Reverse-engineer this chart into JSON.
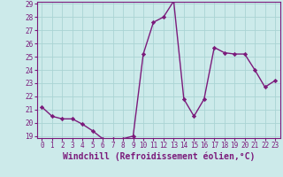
{
  "x": [
    0,
    1,
    2,
    3,
    4,
    5,
    6,
    7,
    8,
    9,
    10,
    11,
    12,
    13,
    14,
    15,
    16,
    17,
    18,
    19,
    20,
    21,
    22,
    23
  ],
  "y": [
    21.2,
    20.5,
    20.3,
    20.3,
    19.9,
    19.4,
    18.8,
    18.8,
    18.8,
    19.0,
    25.2,
    27.6,
    28.0,
    29.2,
    21.8,
    20.5,
    21.8,
    25.7,
    25.3,
    25.2,
    25.2,
    24.0,
    22.7,
    23.2
  ],
  "line_color": "#7b1a7b",
  "marker": "D",
  "marker_size": 2.2,
  "bg_color": "#cceaea",
  "grid_color": "#aad4d4",
  "xlabel": "Windchill (Refroidissement éolien,°C)",
  "ylim": [
    19,
    29
  ],
  "xlim": [
    -0.5,
    23.5
  ],
  "yticks": [
    19,
    20,
    21,
    22,
    23,
    24,
    25,
    26,
    27,
    28,
    29
  ],
  "xticks": [
    0,
    1,
    2,
    3,
    4,
    5,
    6,
    7,
    8,
    9,
    10,
    11,
    12,
    13,
    14,
    15,
    16,
    17,
    18,
    19,
    20,
    21,
    22,
    23
  ],
  "tick_label_fontsize": 5.5,
  "xlabel_fontsize": 7.0,
  "line_width": 1.0
}
